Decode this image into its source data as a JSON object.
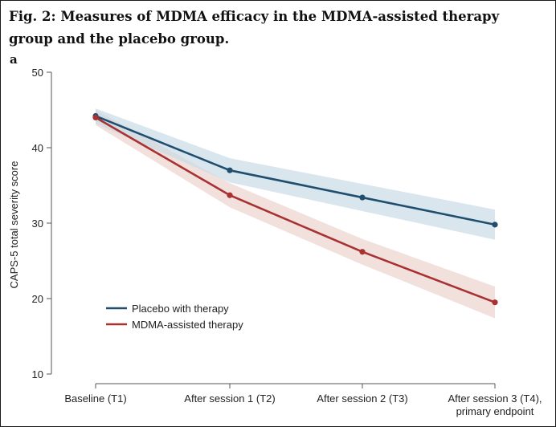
{
  "figure": {
    "title": "Fig. 2: Measures of MDMA efficacy in the MDMA-assisted therapy group and the placebo group.",
    "panel_label": "a"
  },
  "chart_data": {
    "type": "line",
    "title": "",
    "xlabel": "",
    "ylabel": "CAPS-5 total severity score",
    "categories": [
      [
        "Baseline (T1)"
      ],
      [
        "After session 1 (T2)"
      ],
      [
        "After session 2 (T3)"
      ],
      [
        "After session 3 (T4),",
        "primary endpoint"
      ]
    ],
    "ylim": [
      10,
      50
    ],
    "yticks": [
      10,
      20,
      30,
      40,
      50
    ],
    "grid": false,
    "legend_position": "lower-left",
    "series": [
      {
        "name": "Placebo with therapy",
        "color": "#1f4e6e",
        "band_color": "#c9dbe6",
        "values": [
          44.2,
          37.0,
          33.4,
          29.8
        ],
        "ci_low": [
          43.2,
          35.4,
          31.6,
          27.8
        ],
        "ci_high": [
          45.2,
          38.6,
          35.2,
          31.8
        ]
      },
      {
        "name": "MDMA-assisted therapy",
        "color": "#a83232",
        "band_color": "#ecd3cf",
        "values": [
          44.0,
          33.7,
          26.2,
          19.5
        ],
        "ci_low": [
          43.0,
          32.1,
          24.5,
          17.4
        ],
        "ci_high": [
          45.0,
          35.3,
          27.9,
          21.6
        ]
      }
    ]
  }
}
